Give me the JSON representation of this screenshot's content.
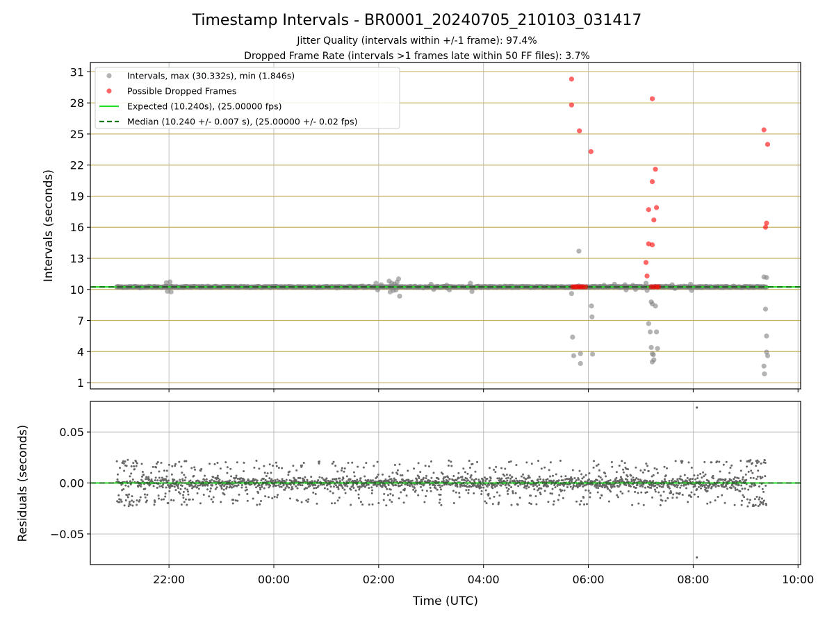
{
  "chart_data": [
    {
      "type": "scatter",
      "title": "Timestamp Intervals - BR0001_20240705_210103_031417",
      "subtitle_lines": [
        "Jitter Quality (intervals within +/-1 frame): 97.4%",
        "Dropped Frame Rate (intervals >1 frames late within 50 FF files): 3.7%"
      ],
      "ylabel": "Intervals (seconds)",
      "xlim_hours": [
        20.5,
        34.05
      ],
      "ylim": [
        0.4,
        31.9
      ],
      "yticks": [
        1,
        4,
        7,
        10,
        13,
        16,
        19,
        22,
        25,
        28,
        31
      ],
      "ytick_labels": [
        "1",
        "4",
        "7",
        "10",
        "13",
        "16",
        "19",
        "22",
        "25",
        "28",
        "31"
      ],
      "hlines_gold": [
        1,
        4,
        7,
        10,
        13,
        16,
        19,
        22,
        25,
        28,
        31
      ],
      "grid": true,
      "legend_placement": "top-left",
      "legend": [
        {
          "label": "Intervals, max (30.332s), min (1.846s)",
          "kind": "marker",
          "color": "#808080"
        },
        {
          "label": "Possible Dropped Frames",
          "kind": "marker",
          "color": "#ff0000"
        },
        {
          "label": "Expected (10.240s), (25.00000 fps)",
          "kind": "line",
          "color": "#22dd22"
        },
        {
          "label": "Median (10.240 +/- 0.007 s), (25.00000 +/- 0.02 fps)",
          "kind": "dashed",
          "color": "#117711"
        }
      ],
      "expected": 10.24,
      "median": 10.24,
      "normal_band": {
        "x_range": [
          21.0,
          33.4
        ],
        "y": 10.24
      },
      "series": [
        {
          "name": "Intervals, max (30.332s), min (1.846s)",
          "color": "#808080",
          "points": [
            [
              21.95,
              10.65
            ],
            [
              21.97,
              9.82
            ],
            [
              22.02,
              10.72
            ],
            [
              22.04,
              9.76
            ],
            [
              25.95,
              10.6
            ],
            [
              25.98,
              9.95
            ],
            [
              26.05,
              10.45
            ],
            [
              26.2,
              10.8
            ],
            [
              26.22,
              9.75
            ],
            [
              26.25,
              10.6
            ],
            [
              26.28,
              9.9
            ],
            [
              26.3,
              10.5
            ],
            [
              26.33,
              9.95
            ],
            [
              26.35,
              10.7
            ],
            [
              26.38,
              11.02
            ],
            [
              26.4,
              9.35
            ],
            [
              27.0,
              10.5
            ],
            [
              27.05,
              10.0
            ],
            [
              27.3,
              10.4
            ],
            [
              27.35,
              9.95
            ],
            [
              27.75,
              10.6
            ],
            [
              27.78,
              9.8
            ],
            [
              29.68,
              9.6
            ],
            [
              29.7,
              5.4
            ],
            [
              29.72,
              3.6
            ],
            [
              29.82,
              13.7
            ],
            [
              29.85,
              3.8
            ],
            [
              29.85,
              2.85
            ],
            [
              30.06,
              8.4
            ],
            [
              30.07,
              7.35
            ],
            [
              30.08,
              3.75
            ],
            [
              30.3,
              10.4
            ],
            [
              30.5,
              10.5
            ],
            [
              30.7,
              10.45
            ],
            [
              30.72,
              9.95
            ],
            [
              30.85,
              10.4
            ],
            [
              30.9,
              10.0
            ],
            [
              31.1,
              10.6
            ],
            [
              31.12,
              9.9
            ],
            [
              31.15,
              6.7
            ],
            [
              31.18,
              5.9
            ],
            [
              31.2,
              8.8
            ],
            [
              31.22,
              8.6
            ],
            [
              31.2,
              4.4
            ],
            [
              31.22,
              3.8
            ],
            [
              31.24,
              3.7
            ],
            [
              31.22,
              3.0
            ],
            [
              31.25,
              3.2
            ],
            [
              31.28,
              8.4
            ],
            [
              31.3,
              5.9
            ],
            [
              31.32,
              4.3
            ],
            [
              31.6,
              10.45
            ],
            [
              31.65,
              10.1
            ],
            [
              31.95,
              10.5
            ],
            [
              31.97,
              9.9
            ],
            [
              33.35,
              11.2
            ],
            [
              33.4,
              11.15
            ],
            [
              33.35,
              2.6
            ],
            [
              33.36,
              1.85
            ],
            [
              33.38,
              8.1
            ],
            [
              33.4,
              5.5
            ],
            [
              33.4,
              3.95
            ],
            [
              33.42,
              3.6
            ]
          ]
        },
        {
          "name": "Possible Dropped Frames",
          "color": "#ff0000",
          "points": [
            [
              29.68,
              30.3
            ],
            [
              29.68,
              27.8
            ],
            [
              29.83,
              25.3
            ],
            [
              30.05,
              23.3
            ],
            [
              31.22,
              28.4
            ],
            [
              31.28,
              21.6
            ],
            [
              31.22,
              20.4
            ],
            [
              31.15,
              17.7
            ],
            [
              31.3,
              17.9
            ],
            [
              31.25,
              16.7
            ],
            [
              31.15,
              14.4
            ],
            [
              31.22,
              14.3
            ],
            [
              31.1,
              12.6
            ],
            [
              31.12,
              11.3
            ],
            [
              33.35,
              25.4
            ],
            [
              33.42,
              24.0
            ],
            [
              33.4,
              16.4
            ],
            [
              33.38,
              16.0
            ],
            [
              29.7,
              10.25
            ],
            [
              29.74,
              10.25
            ],
            [
              29.78,
              10.25
            ],
            [
              29.82,
              10.25
            ],
            [
              29.86,
              10.25
            ],
            [
              29.9,
              10.25
            ],
            [
              29.95,
              10.25
            ],
            [
              31.2,
              10.25
            ],
            [
              31.25,
              10.25
            ],
            [
              31.3,
              10.25
            ],
            [
              31.34,
              10.25
            ]
          ]
        }
      ]
    },
    {
      "type": "scatter",
      "xlabel": "Time (UTC)",
      "ylabel": "Residuals (seconds)",
      "xlim_hours": [
        20.5,
        34.05
      ],
      "ylim": [
        -0.08,
        0.08
      ],
      "yticks": [
        0.05,
        0.0,
        -0.05
      ],
      "ytick_labels": [
        "0.05",
        "0.00",
        "−0.05"
      ],
      "xticks_hours": [
        22,
        24,
        26,
        28,
        30,
        32,
        34
      ],
      "xtick_labels": [
        "22:00",
        "00:00",
        "02:00",
        "04:00",
        "06:00",
        "08:00",
        "10:00"
      ],
      "grid": true,
      "zero_line": 0.0,
      "x_range_hours": [
        21.0,
        33.4
      ],
      "series_color": "#666666",
      "outliers": [
        [
          32.07,
          0.074
        ],
        [
          32.07,
          -0.073
        ]
      ]
    }
  ]
}
